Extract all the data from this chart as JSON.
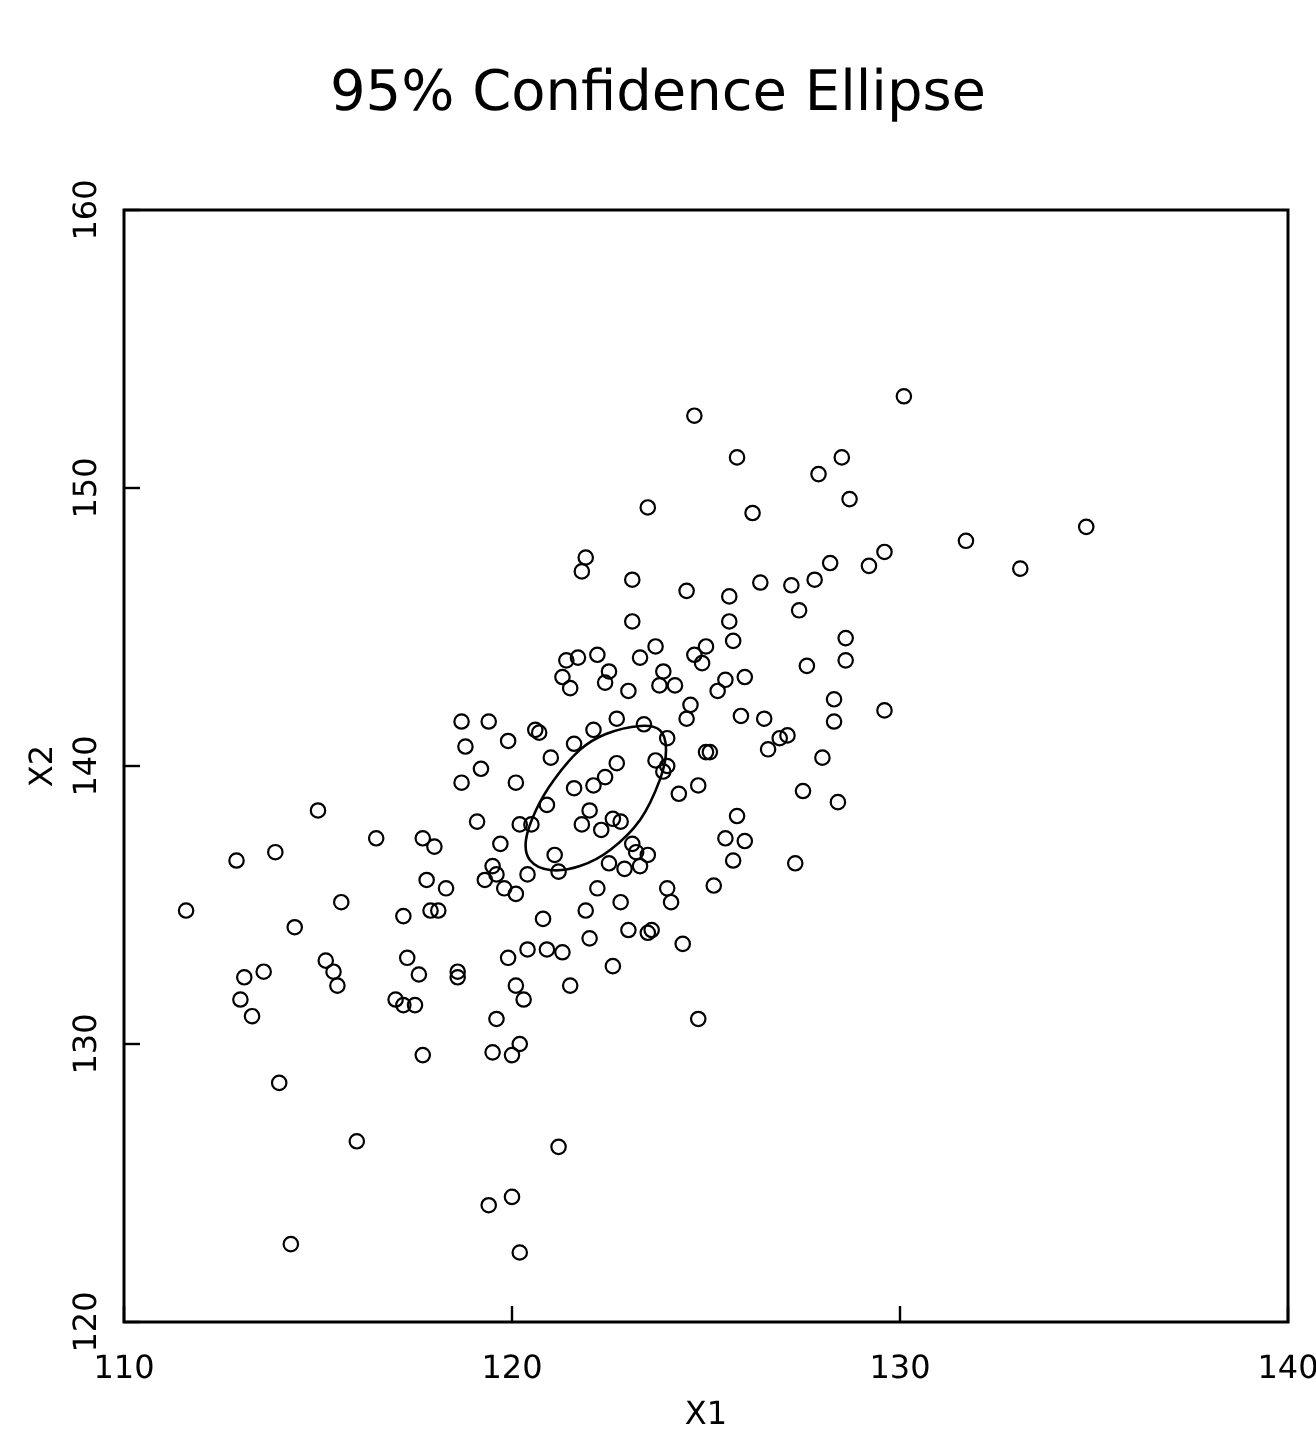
{
  "chart_data": {
    "type": "scatter",
    "title": "95% Confidence Ellipse",
    "xlabel": "X1",
    "ylabel": "X2",
    "xlim": [
      110,
      140
    ],
    "xticks": [
      110,
      120,
      130,
      140
    ],
    "ylim": [
      120,
      160
    ],
    "yticks": [
      120,
      130,
      140,
      150,
      160
    ],
    "grid": false,
    "series": [
      {
        "color": "#000000",
        "marker": "circle",
        "x": [
          111.6,
          112.9,
          113.0,
          113.1,
          113.3,
          113.6,
          113.9,
          114.0,
          114.3,
          114.4,
          115.0,
          115.2,
          115.4,
          115.5,
          115.6,
          116.0,
          116.5,
          117.0,
          117.2,
          117.2,
          117.3,
          117.5,
          117.6,
          117.7,
          117.7,
          117.8,
          117.9,
          118.0,
          118.1,
          118.3,
          118.6,
          118.6,
          118.7,
          118.7,
          118.8,
          119.1,
          119.2,
          119.3,
          119.4,
          119.4,
          119.5,
          119.5,
          119.6,
          119.6,
          119.7,
          119.8,
          119.9,
          119.9,
          120.0,
          120.0,
          120.1,
          120.1,
          120.2,
          120.2,
          120.3,
          120.4,
          120.1,
          120.2,
          120.4,
          120.5,
          120.6,
          120.7,
          120.8,
          120.9,
          120.9,
          121.0,
          121.2,
          121.1,
          121.2,
          121.3,
          121.3,
          121.4,
          121.5,
          121.5,
          121.6,
          121.6,
          121.7,
          121.8,
          121.8,
          121.9,
          121.9,
          122.0,
          122.0,
          122.1,
          122.1,
          122.2,
          122.2,
          122.3,
          122.4,
          122.4,
          122.5,
          122.5,
          122.6,
          122.6,
          122.7,
          122.7,
          122.8,
          122.8,
          122.9,
          123.0,
          123.0,
          123.1,
          123.1,
          123.1,
          123.2,
          123.3,
          123.3,
          123.4,
          123.5,
          123.5,
          123.5,
          123.6,
          123.7,
          123.7,
          123.8,
          123.9,
          123.9,
          124.0,
          124.0,
          124.0,
          124.1,
          124.2,
          124.3,
          124.4,
          124.5,
          124.5,
          124.6,
          124.7,
          124.7,
          124.8,
          124.8,
          124.9,
          125.0,
          125.0,
          125.1,
          125.2,
          125.3,
          125.5,
          125.5,
          125.6,
          125.6,
          125.7,
          125.7,
          125.8,
          125.8,
          125.9,
          126.0,
          126.0,
          126.2,
          126.4,
          126.5,
          126.6,
          126.9,
          127.1,
          127.2,
          127.3,
          127.4,
          127.5,
          127.6,
          127.8,
          127.9,
          128.0,
          128.2,
          128.3,
          128.3,
          128.4,
          128.5,
          128.6,
          128.6,
          128.7,
          129.2,
          129.6,
          129.6,
          130.1,
          131.7,
          133.1,
          134.8
        ],
        "values": [
          134.8,
          136.6,
          131.6,
          132.4,
          131.0,
          132.6,
          136.9,
          128.6,
          122.8,
          134.2,
          138.4,
          133.0,
          132.6,
          132.1,
          135.1,
          126.5,
          137.4,
          131.6,
          131.4,
          134.6,
          133.1,
          131.4,
          132.5,
          129.6,
          137.4,
          135.9,
          134.8,
          137.1,
          134.8,
          135.6,
          132.6,
          132.4,
          139.4,
          141.6,
          140.7,
          138.0,
          139.9,
          135.9,
          124.2,
          141.6,
          136.4,
          129.7,
          130.9,
          136.1,
          137.2,
          135.6,
          140.9,
          133.1,
          124.5,
          129.6,
          135.4,
          132.1,
          122.5,
          130.0,
          131.6,
          133.4,
          139.4,
          137.9,
          136.1,
          137.9,
          141.3,
          141.2,
          134.5,
          133.4,
          138.6,
          140.3,
          126.3,
          136.8,
          136.2,
          143.2,
          133.3,
          143.8,
          142.8,
          132.1,
          139.2,
          140.8,
          143.9,
          147.0,
          137.9,
          147.5,
          134.8,
          138.4,
          133.8,
          141.3,
          139.3,
          144.0,
          135.6,
          137.7,
          143.0,
          139.6,
          136.5,
          143.4,
          132.8,
          138.1,
          141.7,
          140.1,
          138.0,
          135.1,
          136.3,
          142.7,
          134.1,
          146.7,
          145.2,
          137.2,
          136.9,
          136.4,
          143.9,
          141.5,
          149.3,
          136.8,
          134.0,
          134.1,
          144.3,
          140.2,
          142.9,
          143.4,
          139.8,
          141.0,
          140.0,
          135.6,
          135.1,
          142.9,
          139.0,
          133.6,
          146.3,
          141.7,
          142.2,
          144.0,
          152.6,
          139.3,
          130.9,
          143.7,
          144.3,
          140.5,
          140.5,
          135.7,
          142.7,
          143.1,
          137.4,
          146.1,
          145.2,
          144.5,
          136.6,
          151.1,
          138.2,
          141.8,
          137.3,
          143.2,
          149.1,
          146.6,
          141.7,
          140.6,
          141.0,
          141.1,
          146.5,
          136.5,
          145.6,
          139.1,
          143.6,
          146.7,
          150.5,
          140.3,
          147.3,
          142.4,
          141.6,
          138.7,
          151.1,
          144.6,
          143.8,
          149.6,
          147.2,
          147.7,
          142.0,
          153.3,
          148.1,
          147.1,
          148.6
        ]
      }
    ]
  }
}
